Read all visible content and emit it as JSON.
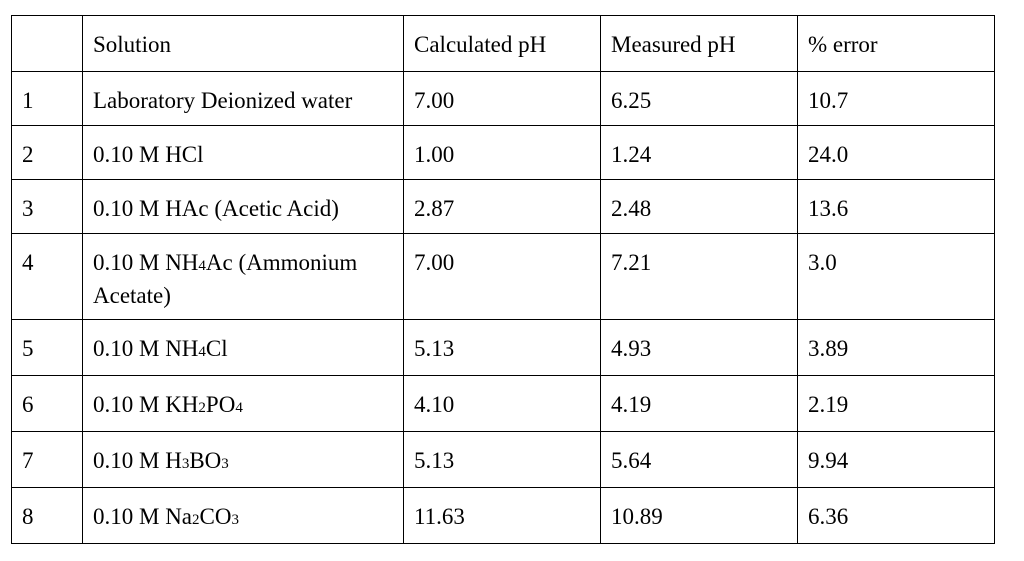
{
  "table": {
    "headers": [
      "",
      "Solution",
      "Calculated pH",
      "Measured pH",
      "% error"
    ],
    "rows": [
      {
        "num": "1",
        "solution": [
          {
            "t": "Laboratory Deionized water"
          }
        ],
        "calculated": "7.00",
        "measured": "6.25",
        "error": "10.7"
      },
      {
        "num": "2",
        "solution": [
          {
            "t": "0.10 M HCl"
          }
        ],
        "calculated": "1.00",
        "measured": "1.24",
        "error": "24.0"
      },
      {
        "num": "3",
        "solution": [
          {
            "t": "0.10 M HAc (Acetic Acid)"
          }
        ],
        "calculated": "2.87",
        "measured": "2.48",
        "error": "13.6"
      },
      {
        "num": "4",
        "solution": [
          {
            "t": "0.10 M NH"
          },
          {
            "t": "4",
            "sub": true
          },
          {
            "t": "Ac (Ammonium Acetate)"
          }
        ],
        "calculated": "7.00",
        "measured": "7.21",
        "error": "3.0"
      },
      {
        "num": "5",
        "solution": [
          {
            "t": "0.10 M NH"
          },
          {
            "t": "4",
            "sub": true
          },
          {
            "t": "Cl"
          }
        ],
        "calculated": "5.13",
        "measured": "4.93",
        "error": "3.89"
      },
      {
        "num": "6",
        "solution": [
          {
            "t": "0.10 M KH"
          },
          {
            "t": "2",
            "sub": true
          },
          {
            "t": "PO"
          },
          {
            "t": "4",
            "sub": true
          }
        ],
        "calculated": "4.10",
        "measured": "4.19",
        "error": "2.19"
      },
      {
        "num": "7",
        "solution": [
          {
            "t": "0.10 M H"
          },
          {
            "t": "3",
            "sub": true
          },
          {
            "t": "BO"
          },
          {
            "t": "3",
            "sub": true
          }
        ],
        "calculated": "5.13",
        "measured": "5.64",
        "error": "9.94"
      },
      {
        "num": "8",
        "solution": [
          {
            "t": "0.10 M Na"
          },
          {
            "t": "2",
            "sub": true
          },
          {
            "t": "CO"
          },
          {
            "t": "3",
            "sub": true
          }
        ],
        "calculated": "11.63",
        "measured": "10.89",
        "error": "6.36"
      }
    ]
  }
}
